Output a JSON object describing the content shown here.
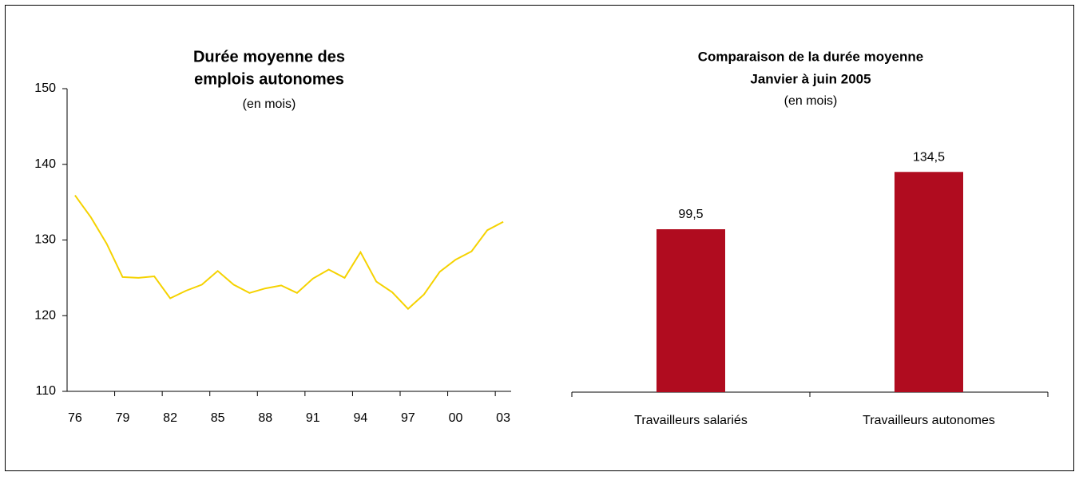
{
  "chart_data": [
    {
      "type": "line",
      "title": [
        "Durée moyenne des",
        "emplois autonomes"
      ],
      "subtitle": "(en mois)",
      "categories": [
        "76",
        null,
        null,
        "79",
        null,
        null,
        "82",
        null,
        null,
        "85",
        null,
        null,
        "88",
        null,
        null,
        "91",
        null,
        null,
        "94",
        null,
        null,
        "97",
        null,
        null,
        "00",
        null,
        null,
        "03"
      ],
      "values": [
        135.9,
        133.0,
        129.5,
        125.1,
        125.0,
        125.2,
        122.3,
        123.3,
        124.1,
        125.9,
        124.1,
        123.0,
        123.6,
        124.0,
        123.0,
        124.9,
        126.1,
        125.0,
        128.4,
        124.5,
        123.1,
        120.9,
        122.8,
        125.8,
        127.4,
        128.5,
        131.3,
        132.4
      ],
      "color": "#f5d200",
      "ylim": [
        110,
        150
      ],
      "yticks": [
        110,
        120,
        130,
        140,
        150
      ]
    },
    {
      "type": "bar",
      "title": [
        "Comparaison de la durée moyenne",
        "Janvier à juin 2005"
      ],
      "subtitle": "(en mois)",
      "categories": [
        "Travailleurs salariés",
        "Travailleurs autonomes"
      ],
      "values": [
        99.5,
        134.5
      ],
      "value_labels": [
        "99,5",
        "134,5"
      ],
      "color": "#b00c1f",
      "ylim": [
        0,
        190
      ]
    }
  ]
}
